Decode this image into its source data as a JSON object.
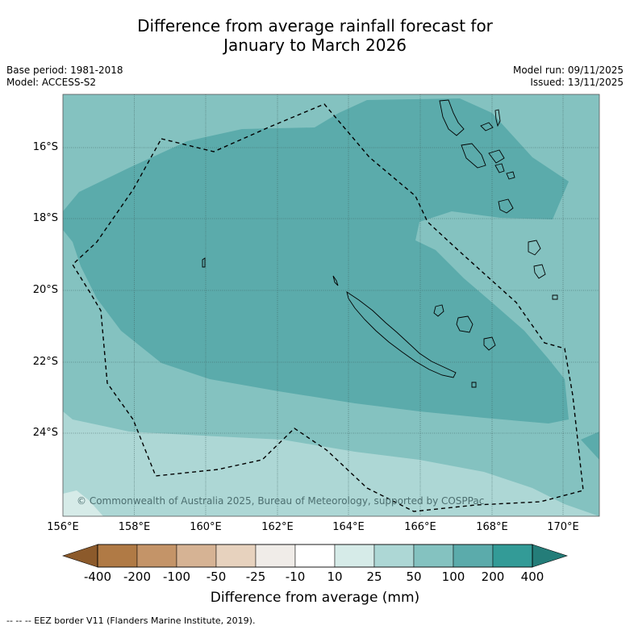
{
  "title_line1": "Difference from average rainfall forecast for",
  "title_line2": "January to March 2026",
  "base_period": "Base period: 1981-2018",
  "model": "Model: ACCESS-S2",
  "model_run": "Model run: 09/11/2025",
  "issued": "Issued: 13/11/2025",
  "latitude_labels": [
    "16°S",
    "18°S",
    "20°S",
    "22°S",
    "24°S"
  ],
  "longitude_labels": [
    "156°E",
    "158°E",
    "160°E",
    "162°E",
    "164°E",
    "166°E",
    "168°E",
    "170°E"
  ],
  "copyright": "© Commonwealth of Australia 2025, Bureau of Meteorology, supported by COSPPac",
  "colorbar": {
    "labels": [
      "-400",
      "-200",
      "-100",
      "-50",
      "-25",
      "-10",
      "10",
      "25",
      "50",
      "100",
      "200",
      "400"
    ],
    "colors": [
      "#8c5a2b",
      "#b07a45",
      "#c49468",
      "#d6b394",
      "#e7d2be",
      "#f0ece8",
      "#ffffff",
      "#d6ebe8",
      "#add7d5",
      "#84c2c0",
      "#5babab",
      "#339b97",
      "#247d79"
    ],
    "title": "Difference from average (mm)"
  },
  "footnote": "--  --  -- EEZ border V11 (Flanders Marine Institute, 2019)."
}
